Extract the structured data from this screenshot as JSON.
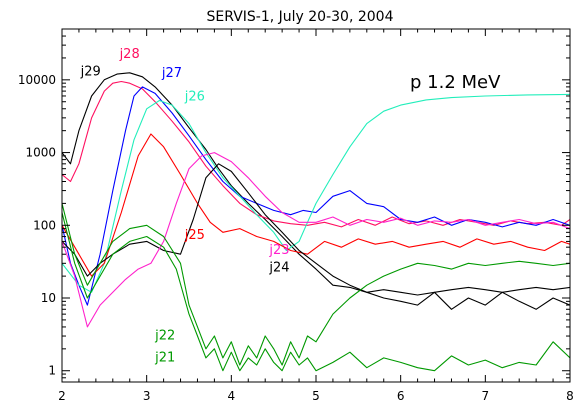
{
  "chart_data": {
    "type": "line",
    "title": "SERVIS-1, July 20-30, 2004",
    "annotation": "p 1.2 MeV",
    "xlabel": "",
    "ylabel": "",
    "xlim": [
      2,
      8
    ],
    "ylim": [
      0.7,
      50000
    ],
    "yscale": "log",
    "grid": false,
    "x_ticks": [
      2,
      3,
      4,
      5,
      6,
      7,
      8
    ],
    "y_ticks": [
      {
        "value": 1,
        "label": "1"
      },
      {
        "value": 10,
        "label": "10"
      },
      {
        "value": 100,
        "label": "100"
      },
      {
        "value": 1000,
        "label": "1000"
      },
      {
        "value": 10000,
        "label": "10000"
      }
    ],
    "series": [
      {
        "name": "j29",
        "color": "#000000",
        "x": [
          2.0,
          2.1,
          2.2,
          2.35,
          2.5,
          2.65,
          2.8,
          2.95,
          3.1,
          3.3,
          3.5,
          3.7,
          3.85,
          4.0,
          4.2,
          4.4,
          4.6,
          4.8,
          5.0,
          5.2,
          5.4,
          5.6,
          5.8,
          6.0,
          6.2,
          6.4,
          6.6,
          6.8,
          7.0,
          7.2,
          7.4,
          7.6,
          7.8,
          8.0
        ],
        "y": [
          1000,
          700,
          2000,
          6000,
          10000,
          12000,
          12500,
          11000,
          8000,
          4500,
          2200,
          1100,
          600,
          350,
          200,
          120,
          70,
          40,
          25,
          15,
          14,
          12,
          13,
          12,
          11,
          12,
          13,
          14,
          13,
          12,
          13,
          14,
          13,
          14
        ]
      },
      {
        "name": "j28",
        "color": "#ff1060",
        "x": [
          2.0,
          2.1,
          2.2,
          2.35,
          2.5,
          2.6,
          2.7,
          2.8,
          2.95,
          3.1,
          3.3,
          3.5,
          3.7,
          3.9,
          4.1,
          4.3,
          4.5,
          4.7,
          4.9,
          5.1,
          5.3,
          5.5,
          5.7,
          5.9,
          6.1,
          6.3,
          6.5,
          6.7,
          6.9,
          7.1,
          7.3,
          7.5,
          7.7,
          7.9,
          8.0
        ],
        "y": [
          500,
          400,
          700,
          3000,
          7000,
          9000,
          9500,
          9000,
          7500,
          5000,
          2700,
          1400,
          650,
          350,
          200,
          140,
          115,
          105,
          100,
          110,
          95,
          120,
          100,
          130,
          105,
          115,
          100,
          120,
          110,
          100,
          115,
          105,
          110,
          100,
          120
        ]
      },
      {
        "name": "j27",
        "color": "#0000ff",
        "x": [
          2.0,
          2.1,
          2.2,
          2.3,
          2.45,
          2.6,
          2.75,
          2.85,
          2.95,
          3.1,
          3.3,
          3.5,
          3.7,
          3.9,
          4.1,
          4.3,
          4.5,
          4.7,
          4.85,
          5.0,
          5.2,
          5.4,
          5.6,
          5.8,
          6.0,
          6.2,
          6.4,
          6.6,
          6.8,
          7.0,
          7.2,
          7.4,
          7.6,
          7.8,
          8.0
        ],
        "y": [
          100,
          30,
          15,
          8,
          40,
          300,
          2000,
          6000,
          8000,
          6500,
          3500,
          1700,
          800,
          400,
          250,
          200,
          160,
          140,
          160,
          150,
          250,
          300,
          200,
          180,
          120,
          110,
          130,
          100,
          120,
          110,
          95,
          110,
          100,
          120,
          100
        ]
      },
      {
        "name": "j26",
        "color": "#22eebb",
        "x": [
          2.0,
          2.2,
          2.35,
          2.5,
          2.7,
          2.85,
          3.0,
          3.15,
          3.3,
          3.5,
          3.7,
          3.9,
          4.1,
          4.3,
          4.5,
          4.65,
          4.8,
          4.9,
          5.0,
          5.2,
          5.4,
          5.6,
          5.8,
          6.0,
          6.3,
          6.6,
          7.0,
          7.5,
          8.0
        ],
        "y": [
          30,
          15,
          12,
          30,
          300,
          1500,
          4000,
          5200,
          4500,
          2500,
          1000,
          450,
          250,
          140,
          80,
          45,
          60,
          110,
          200,
          500,
          1200,
          2500,
          3700,
          4500,
          5300,
          5700,
          6000,
          6200,
          6300
        ]
      },
      {
        "name": "j25",
        "color": "#ff0000",
        "x": [
          2.0,
          2.2,
          2.35,
          2.5,
          2.7,
          2.9,
          3.05,
          3.2,
          3.4,
          3.6,
          3.75,
          3.9,
          4.1,
          4.3,
          4.5,
          4.7,
          4.9,
          5.1,
          5.3,
          5.5,
          5.7,
          5.9,
          6.1,
          6.3,
          6.5,
          6.7,
          6.9,
          7.1,
          7.3,
          7.5,
          7.7,
          7.9,
          8.0
        ],
        "y": [
          100,
          40,
          20,
          30,
          150,
          900,
          1800,
          1200,
          500,
          200,
          110,
          80,
          90,
          70,
          60,
          45,
          40,
          60,
          50,
          65,
          55,
          60,
          50,
          55,
          60,
          50,
          65,
          55,
          60,
          50,
          45,
          60,
          55
        ]
      },
      {
        "name": "j24",
        "color": "#000000",
        "x": [
          2.0,
          2.15,
          2.3,
          2.45,
          2.6,
          2.8,
          3.0,
          3.2,
          3.4,
          3.55,
          3.7,
          3.85,
          4.0,
          4.2,
          4.4,
          4.6,
          4.8,
          5.0,
          5.2,
          5.4,
          5.6,
          5.8,
          6.0,
          6.2,
          6.4,
          6.6,
          6.8,
          7.0,
          7.2,
          7.4,
          7.6,
          7.8,
          8.0
        ],
        "y": [
          60,
          40,
          20,
          30,
          40,
          55,
          60,
          45,
          40,
          120,
          450,
          700,
          550,
          280,
          140,
          80,
          45,
          30,
          20,
          15,
          12,
          10,
          9,
          8,
          12,
          7,
          10,
          8,
          12,
          9,
          7,
          10,
          8
        ]
      },
      {
        "name": "j23",
        "color": "#ff22cc",
        "x": [
          2.0,
          2.15,
          2.3,
          2.45,
          2.6,
          2.75,
          2.9,
          3.05,
          3.2,
          3.35,
          3.5,
          3.65,
          3.8,
          4.0,
          4.2,
          4.4,
          4.6,
          4.8,
          5.0,
          5.2,
          5.4,
          5.6,
          5.8,
          6.0,
          6.2,
          6.4,
          6.6,
          6.8,
          7.0,
          7.2,
          7.4,
          7.6,
          7.8,
          8.0
        ],
        "y": [
          60,
          20,
          4,
          8,
          12,
          18,
          25,
          30,
          60,
          200,
          600,
          900,
          1000,
          750,
          450,
          250,
          150,
          110,
          110,
          130,
          100,
          120,
          110,
          125,
          100,
          115,
          110,
          120,
          100,
          110,
          120,
          105,
          110,
          90
        ]
      },
      {
        "name": "j22",
        "color": "#009900",
        "x": [
          2.0,
          2.15,
          2.3,
          2.45,
          2.6,
          2.8,
          3.0,
          3.2,
          3.4,
          3.5,
          3.6,
          3.7,
          3.8,
          3.9,
          4.0,
          4.1,
          4.2,
          4.3,
          4.4,
          4.5,
          4.6,
          4.7,
          4.8,
          4.9,
          5.0,
          5.2,
          5.4,
          5.6,
          5.8,
          6.0,
          6.2,
          6.4,
          6.6,
          6.8,
          7.0,
          7.2,
          7.4,
          7.6,
          7.8,
          8.0
        ],
        "y": [
          200,
          40,
          15,
          30,
          60,
          90,
          100,
          70,
          30,
          8,
          4,
          2,
          3,
          1.5,
          2.5,
          1.2,
          2.2,
          1.5,
          3,
          2,
          1.2,
          2.5,
          1.5,
          3,
          2.5,
          6,
          10,
          15,
          20,
          25,
          30,
          28,
          25,
          30,
          28,
          30,
          32,
          30,
          28,
          30
        ]
      },
      {
        "name": "j21",
        "color": "#009900",
        "x": [
          2.0,
          2.15,
          2.3,
          2.45,
          2.6,
          2.8,
          3.0,
          3.2,
          3.35,
          3.5,
          3.6,
          3.7,
          3.8,
          3.9,
          4.0,
          4.1,
          4.2,
          4.3,
          4.4,
          4.5,
          4.6,
          4.7,
          4.8,
          4.9,
          5.0,
          5.2,
          5.4,
          5.6,
          5.8,
          6.0,
          6.2,
          6.4,
          6.6,
          6.8,
          7.0,
          7.2,
          7.4,
          7.6,
          7.8,
          8.0
        ],
        "y": [
          150,
          30,
          10,
          20,
          40,
          60,
          70,
          50,
          25,
          6,
          3,
          1.5,
          2,
          1,
          1.8,
          1,
          1.5,
          1.2,
          2,
          1.3,
          1,
          1.8,
          1.2,
          1.5,
          1,
          1.3,
          1.8,
          1.1,
          1.5,
          1.3,
          1.1,
          1,
          1.6,
          1.2,
          1.4,
          1.1,
          1.3,
          1.2,
          2.5,
          1.5
        ]
      }
    ],
    "series_label_positions_data": [
      {
        "name": "j29",
        "x": 2.22,
        "y": 11500
      },
      {
        "name": "j28",
        "x": 2.68,
        "y": 20000
      },
      {
        "name": "j27",
        "x": 3.18,
        "y": 11000
      },
      {
        "name": "j26",
        "x": 3.45,
        "y": 5200
      },
      {
        "name": "j25",
        "x": 3.45,
        "y": 65
      },
      {
        "name": "j24",
        "x": 4.45,
        "y": 23
      },
      {
        "name": "j23",
        "x": 4.45,
        "y": 40
      },
      {
        "name": "j22",
        "x": 3.1,
        "y": 2.7
      },
      {
        "name": "j21",
        "x": 3.1,
        "y": 1.35
      }
    ]
  }
}
